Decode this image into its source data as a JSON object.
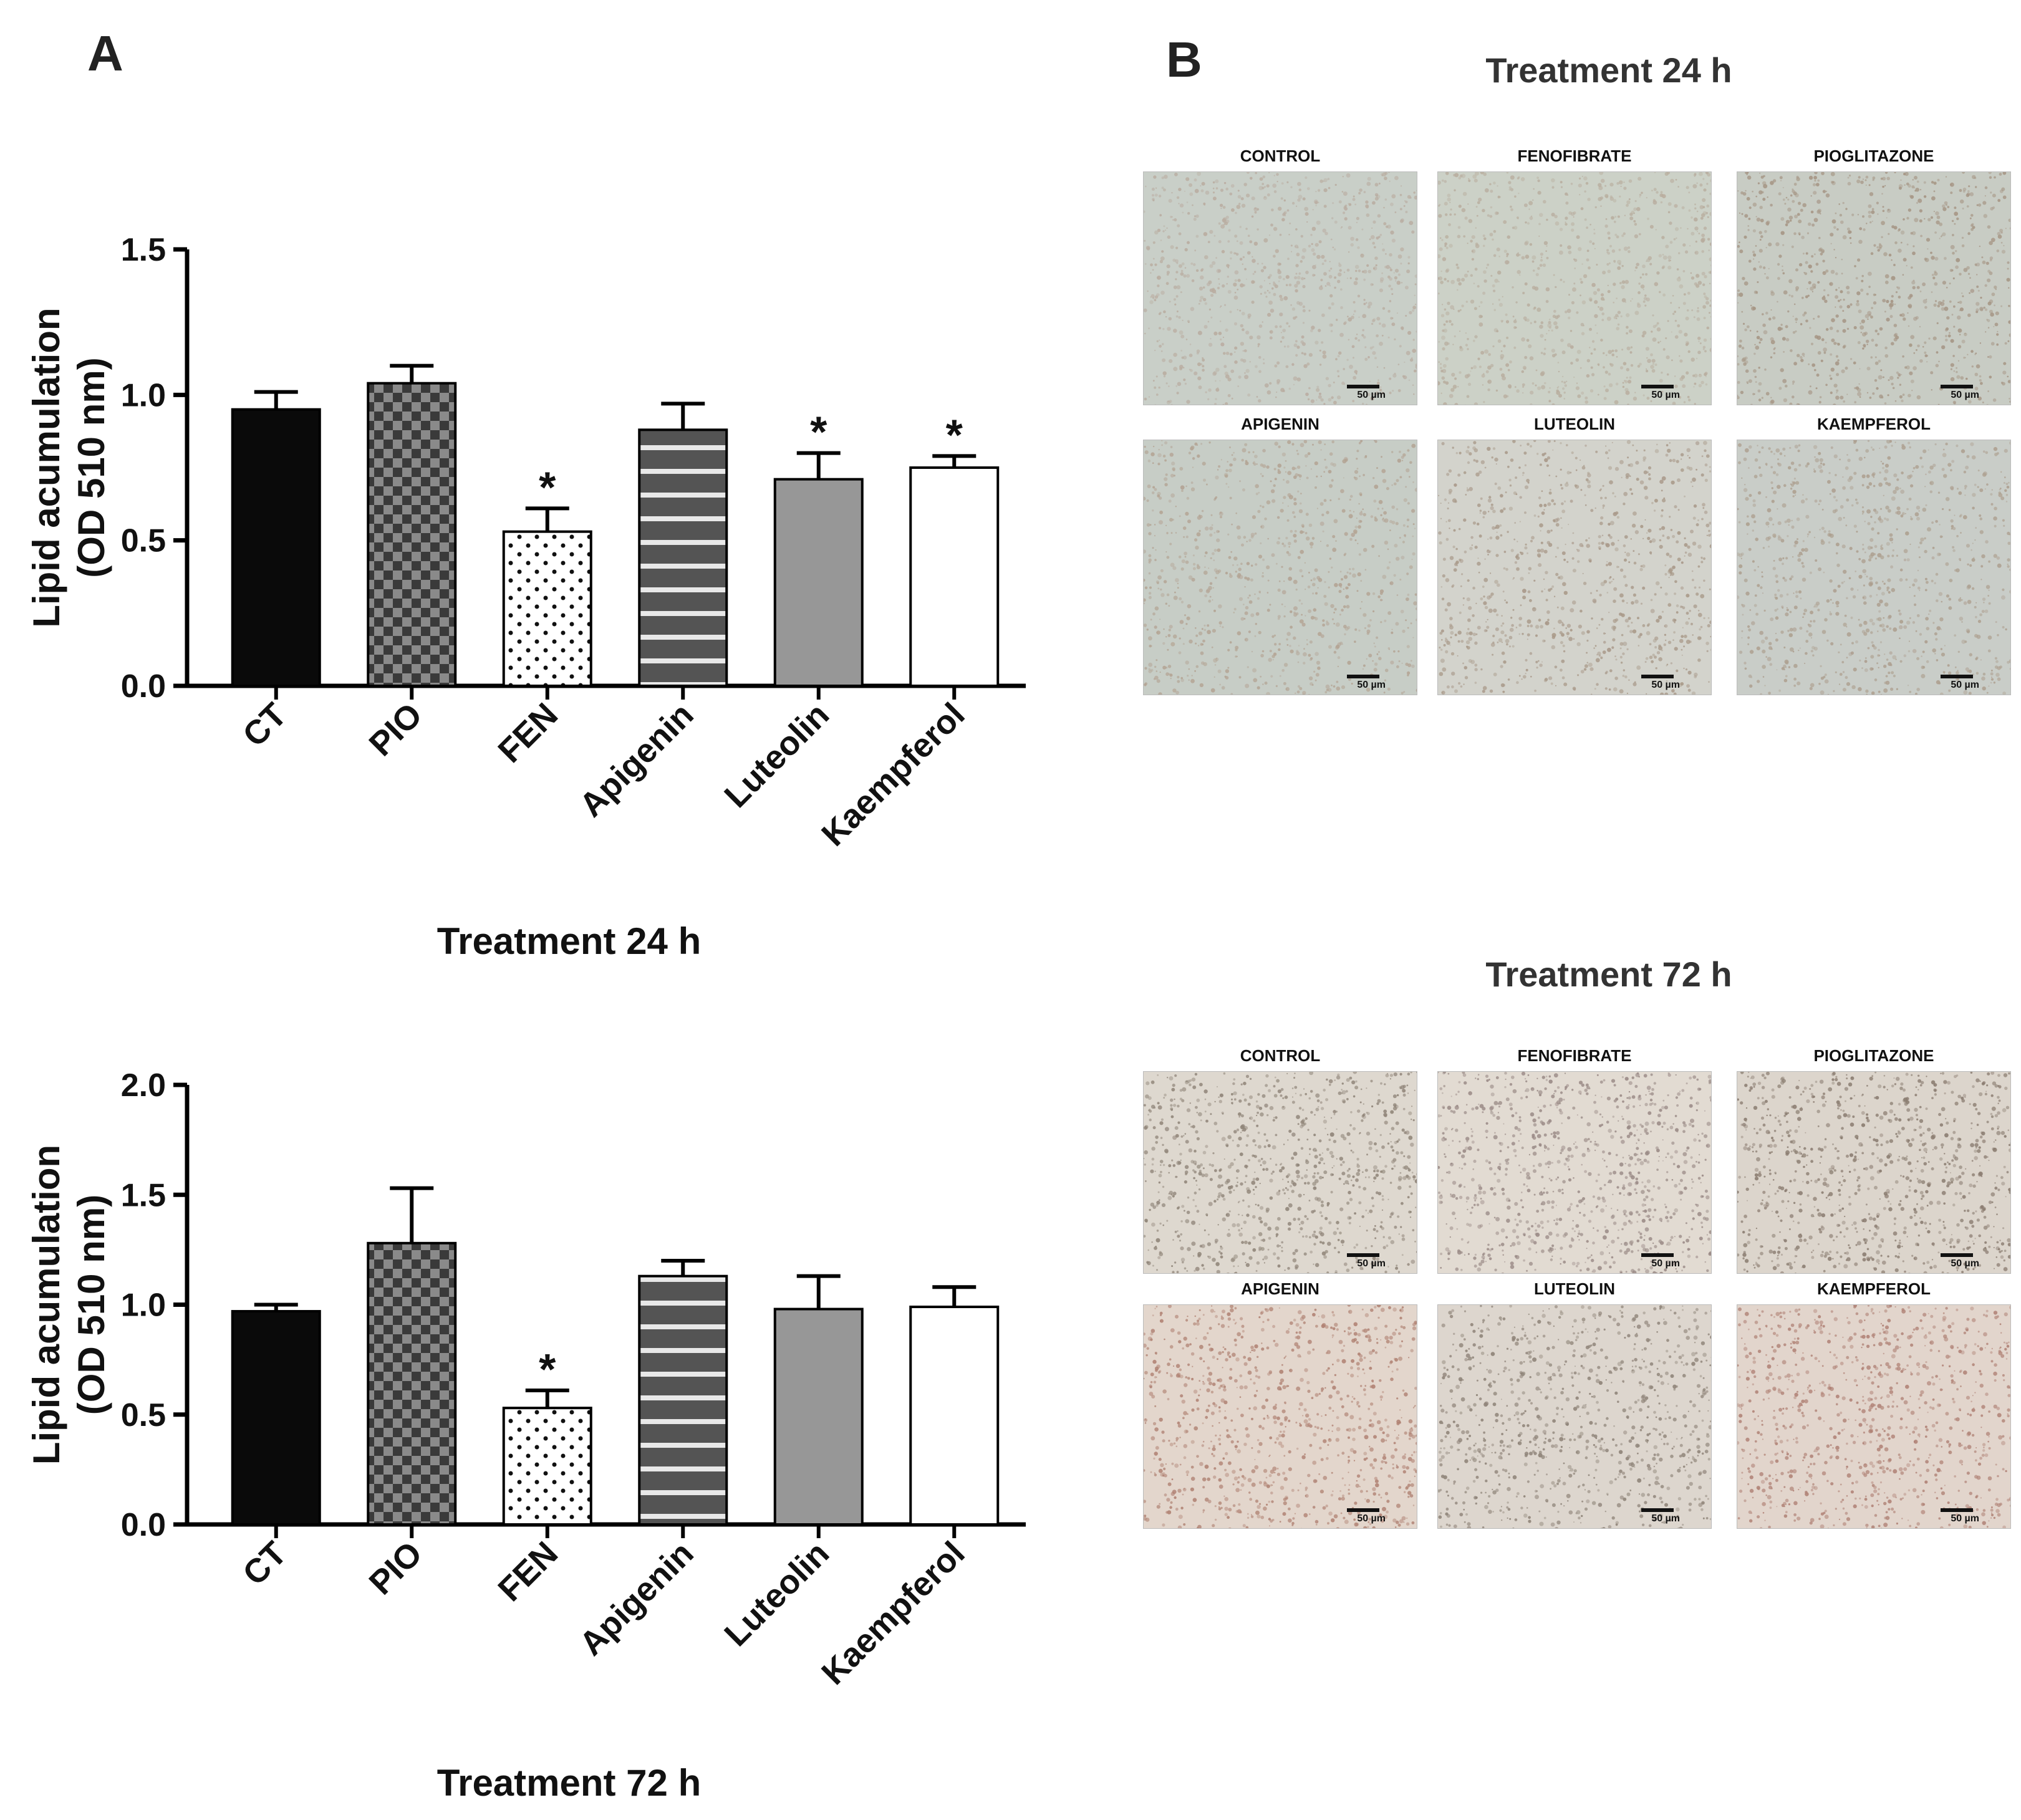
{
  "panel_a": {
    "letter": "A"
  },
  "panel_b": {
    "letter": "B",
    "title_24": "Treatment 24 h",
    "title_72": "Treatment 72 h",
    "scale_text": "50 µm",
    "images_24": [
      {
        "label": "CONTROL",
        "tone": "#b9aca0",
        "bg": "#c9cfc8"
      },
      {
        "label": "FENOFIBRATE",
        "tone": "#b8ad9e",
        "bg": "#ccd1c7"
      },
      {
        "label": "PIOGLITAZONE",
        "tone": "#a59483",
        "bg": "#c8ccc4"
      },
      {
        "label": "APIGENIN",
        "tone": "#b3a393",
        "bg": "#c7cdc6"
      },
      {
        "label": "LUTEOLIN",
        "tone": "#a89888",
        "bg": "#d3d3cc"
      },
      {
        "label": "KAEMPFEROL",
        "tone": "#ad9f8f",
        "bg": "#c9cdc8"
      }
    ],
    "images_72": [
      {
        "label": "CONTROL",
        "tone": "#8f8478",
        "bg": "#ded8cf"
      },
      {
        "label": "FENOFIBRATE",
        "tone": "#9a8a86",
        "bg": "#e2dbd2"
      },
      {
        "label": "PIOGLITAZONE",
        "tone": "#8a7c70",
        "bg": "#dcd5cc"
      },
      {
        "label": "APIGENIN",
        "tone": "#b08273",
        "bg": "#e3d6cc"
      },
      {
        "label": "LUTEOLIN",
        "tone": "#8e8378",
        "bg": "#ddd6ce"
      },
      {
        "label": "KAEMPFEROL",
        "tone": "#b08276",
        "bg": "#e2d5cc"
      }
    ]
  },
  "colors": {
    "bar_black": "#0a0a0a",
    "bar_dark": "#545454",
    "bar_gray": "#979797",
    "bar_white": "#ffffff"
  },
  "chart_data": [
    {
      "type": "bar",
      "categories": [
        "CT",
        "PIO",
        "FEN",
        "Apigenin",
        "Luteolin",
        "Kaempferol"
      ],
      "values": [
        0.95,
        1.04,
        0.53,
        0.88,
        0.71,
        0.75
      ],
      "errors": [
        0.06,
        0.06,
        0.08,
        0.09,
        0.09,
        0.04
      ],
      "significant": [
        false,
        false,
        true,
        false,
        true,
        true
      ],
      "sig_marker": "*",
      "patterns": [
        "solid-black",
        "checker",
        "dots",
        "stripes",
        "solid-gray",
        "solid-white"
      ],
      "xlabel": "Treatment 24 h",
      "ylabel_line1": "Lipid acumulation",
      "ylabel_line2": "(OD 510 nm)",
      "ylim": [
        0,
        1.5
      ],
      "yticks": [
        "0.0",
        "0.5",
        "1.0",
        "1.5"
      ],
      "ytick_values": [
        0,
        0.5,
        1.0,
        1.5
      ]
    },
    {
      "type": "bar",
      "categories": [
        "CT",
        "PIO",
        "FEN",
        "Apigenin",
        "Luteolin",
        "Kaempferol"
      ],
      "values": [
        0.97,
        1.28,
        0.53,
        1.13,
        0.98,
        0.99
      ],
      "errors": [
        0.03,
        0.25,
        0.08,
        0.07,
        0.15,
        0.09
      ],
      "significant": [
        false,
        false,
        true,
        false,
        false,
        false
      ],
      "sig_marker": "*",
      "patterns": [
        "solid-black",
        "checker",
        "dots",
        "stripes",
        "solid-gray",
        "solid-white"
      ],
      "xlabel": "Treatment 72 h",
      "ylabel_line1": "Lipid acumulation",
      "ylabel_line2": "(OD 510 nm)",
      "ylim": [
        0,
        2.0
      ],
      "yticks": [
        "0.0",
        "0.5",
        "1.0",
        "1.5",
        "2.0"
      ],
      "ytick_values": [
        0,
        0.5,
        1.0,
        1.5,
        2.0
      ]
    }
  ]
}
